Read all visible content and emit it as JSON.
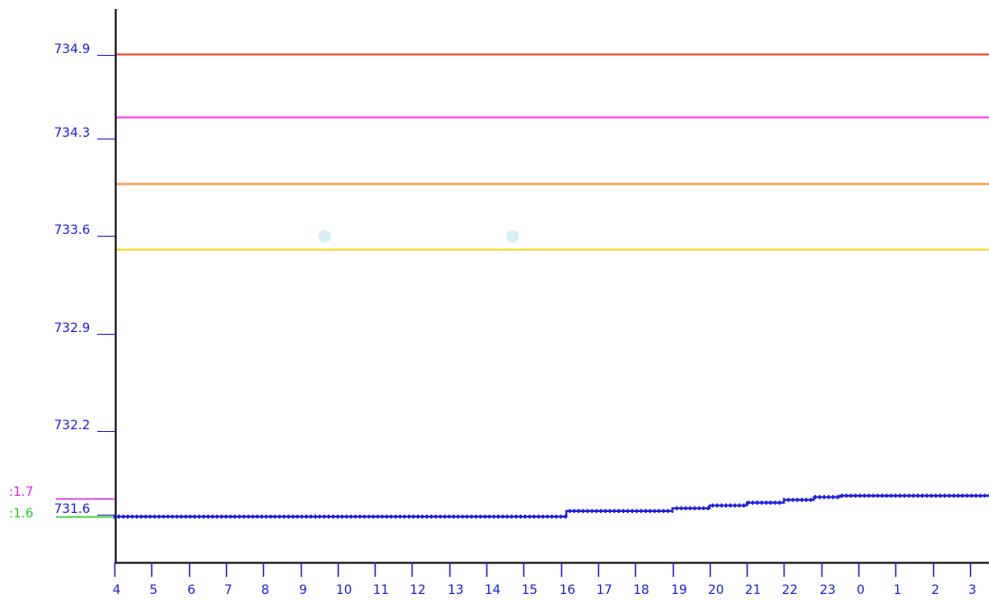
{
  "chart_data": {
    "type": "line",
    "title": "",
    "xlabel": "",
    "ylabel": "",
    "ylim": [
      730.8,
      735.15
    ],
    "y_ticks": [
      "734.9",
      "734.3",
      "733.6",
      "732.9",
      "732.2",
      "731.6"
    ],
    "y_tick_values": [
      734.9,
      734.3,
      733.6,
      732.9,
      732.2,
      731.6
    ],
    "x_tick_labels": [
      "4",
      "5",
      "6",
      "7",
      "8",
      "9",
      "10",
      "11",
      "12",
      "13",
      "14",
      "15",
      "16",
      "17",
      "18",
      "19",
      "20",
      "21",
      "22",
      "23",
      "0",
      "1",
      "2",
      "3"
    ],
    "threshold_lines": [
      {
        "value": 734.9,
        "color": "#ff3a2a"
      },
      {
        "value": 734.45,
        "color": "#ff33ff"
      },
      {
        "value": 733.97,
        "color": "#ff8a2a"
      },
      {
        "value": 733.5,
        "color": "#ffd21a"
      }
    ],
    "side_markers": [
      {
        "label": "1.7",
        "value": 731.71,
        "color": "#e020e0"
      },
      {
        "label": "1.6",
        "value": 731.58,
        "color": "#22cc22"
      }
    ],
    "series": [
      {
        "color": "#1a1adb",
        "x": [
          4.0,
          15.75,
          16.15,
          18.0,
          19.0,
          20.0,
          21.0,
          22.0,
          22.8,
          23.5,
          27.9
        ],
        "values": [
          731.58,
          731.58,
          731.62,
          731.62,
          731.64,
          731.66,
          731.68,
          731.7,
          731.72,
          731.73,
          731.73
        ]
      }
    ],
    "highlight_points": [
      {
        "x": 9.65,
        "y": 733.59,
        "color": "#d8eef8"
      },
      {
        "x": 14.7,
        "y": 733.59,
        "color": "#d8eef8"
      }
    ],
    "grid": false,
    "legend": "none"
  }
}
